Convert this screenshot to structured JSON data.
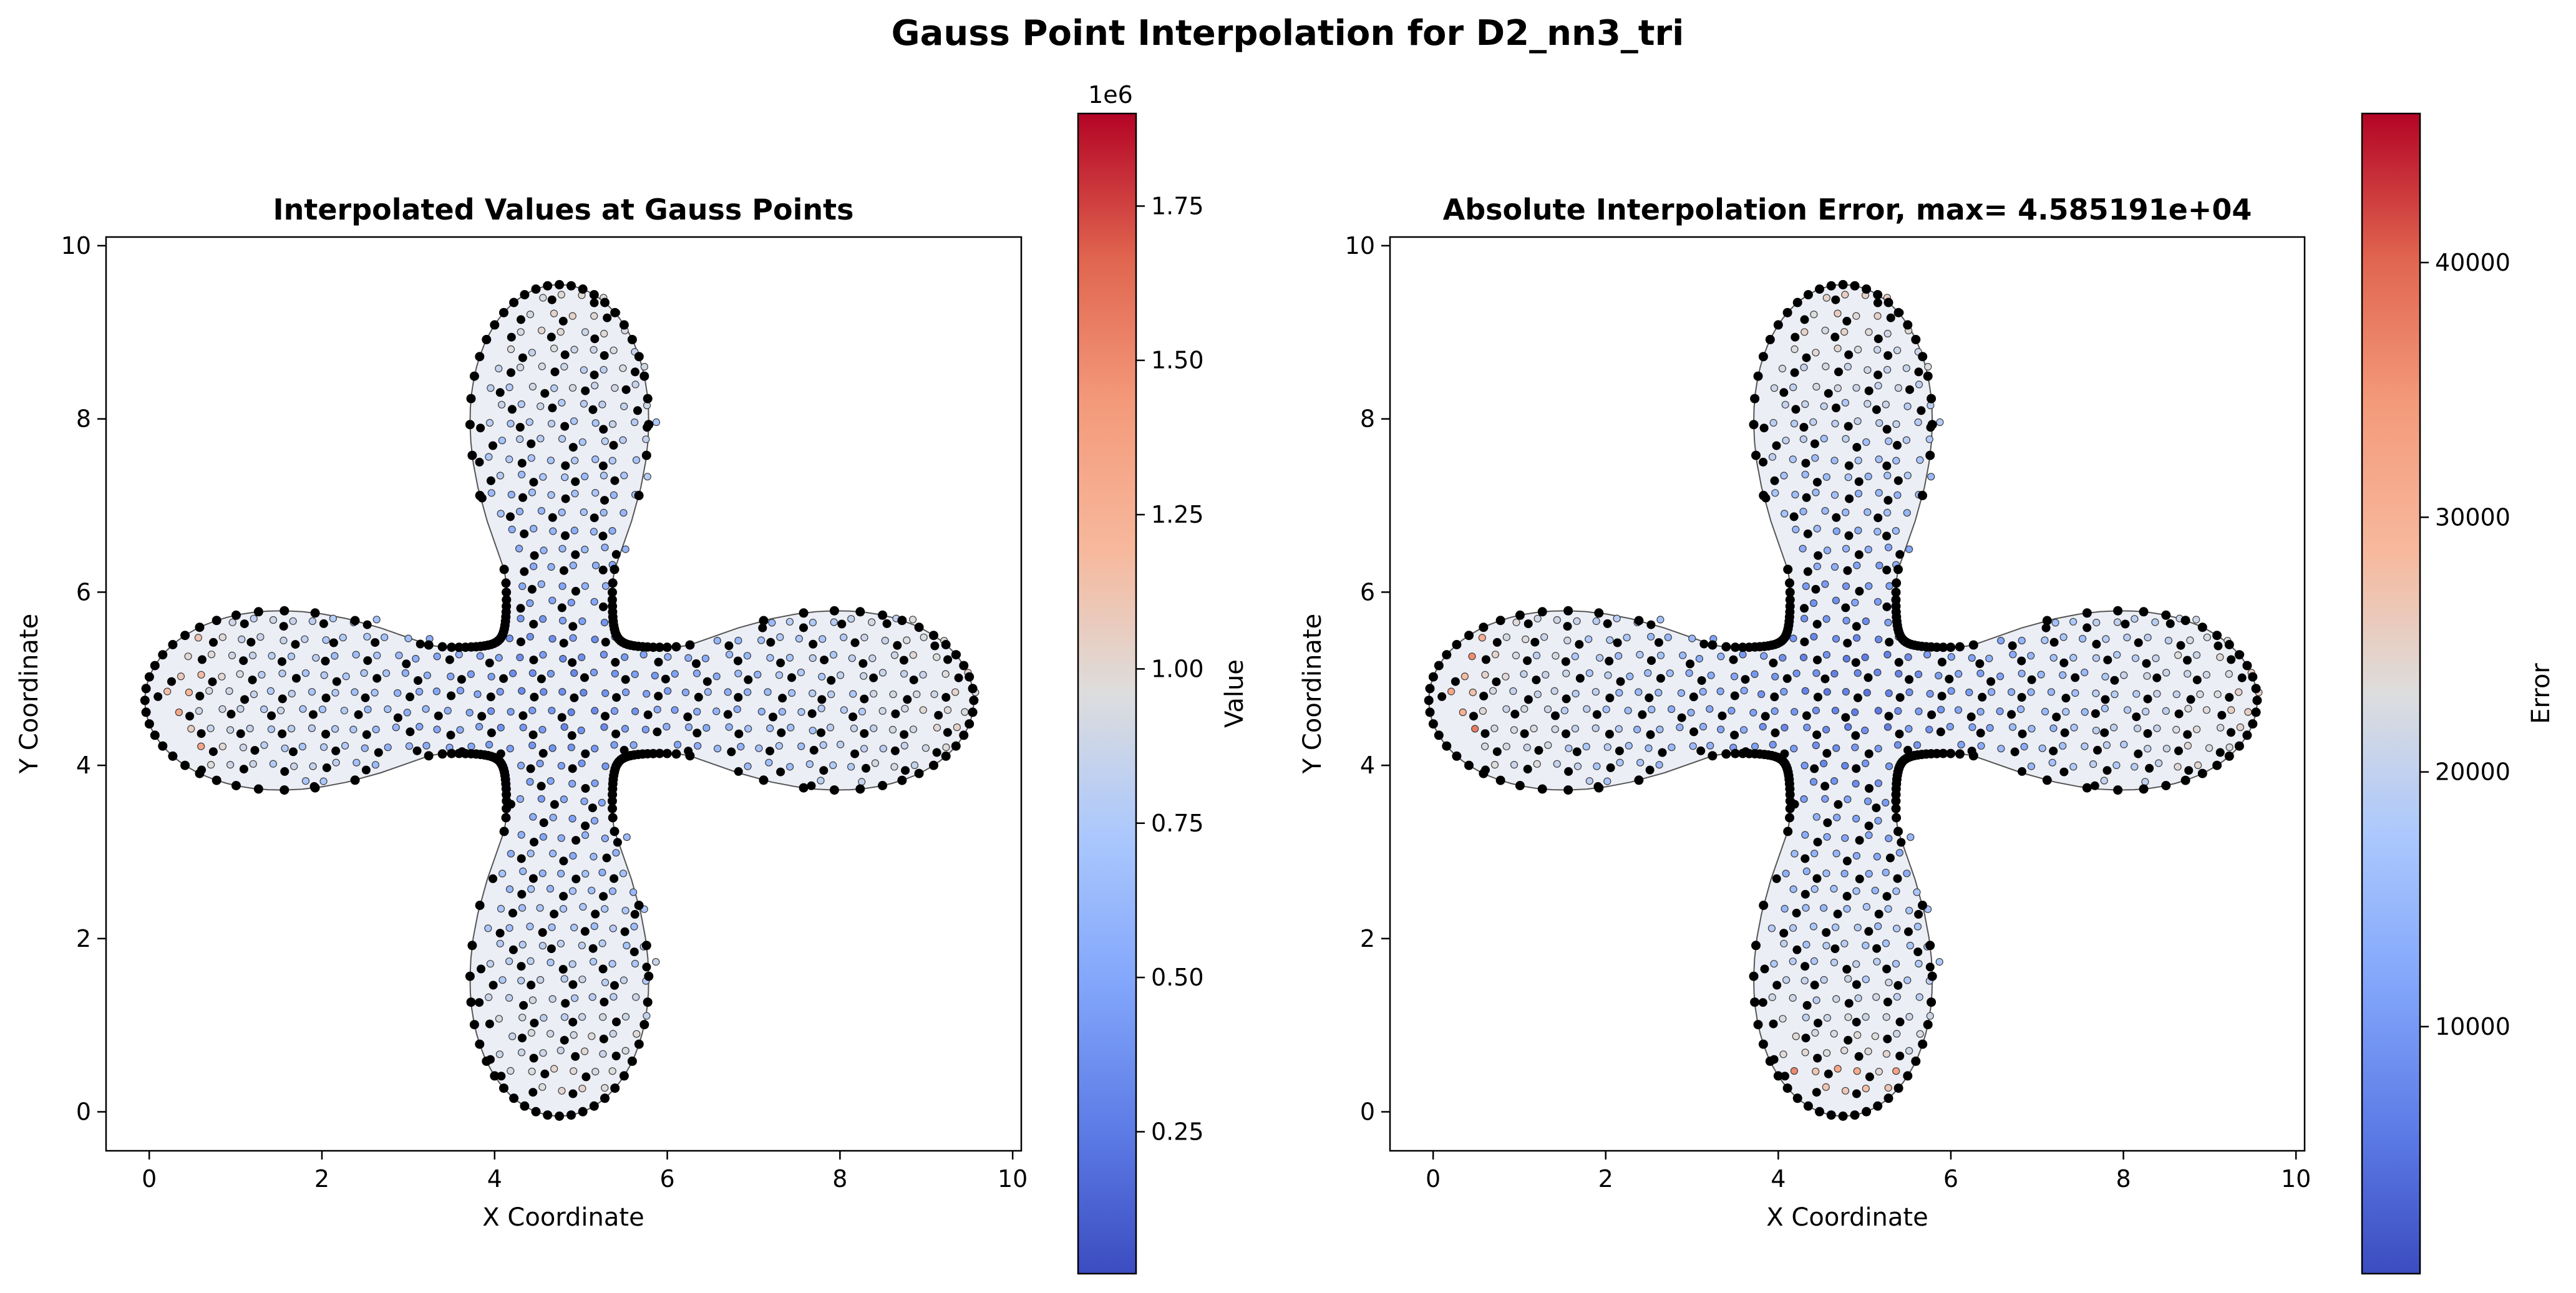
{
  "figure": {
    "title": "Gauss Point Interpolation for D2_nn3_tri"
  },
  "chart_data": [
    {
      "type": "scatter",
      "subtype": "triangular-mesh-gauss-points",
      "title": "Interpolated Values at Gauss Points",
      "xlabel": "X Coordinate",
      "ylabel": "Y Coordinate",
      "xlim": [
        -0.5,
        10.1
      ],
      "ylim": [
        -0.45,
        10.1
      ],
      "xticks": [
        0,
        2,
        4,
        6,
        8,
        10
      ],
      "yticks": [
        0,
        2,
        4,
        6,
        8,
        10
      ],
      "xtick_labels": [
        "0",
        "2",
        "4",
        "6",
        "8",
        "10"
      ],
      "ytick_labels": [
        "0",
        "2",
        "4",
        "6",
        "8",
        "10"
      ],
      "domain_shape": "8-petal flower, center (4.75, 4.75)",
      "colormap": "coolwarm",
      "colorbar": {
        "label": "Value",
        "multiplier": "1e6",
        "range": [
          0.02,
          1.9
        ],
        "ticks": [
          0.25,
          0.5,
          0.75,
          1.0,
          1.25,
          1.5,
          1.75
        ],
        "tick_labels": [
          "0.25",
          "0.50",
          "0.75",
          "1.00",
          "1.25",
          "1.50",
          "1.75"
        ]
      }
    },
    {
      "type": "scatter",
      "subtype": "triangular-mesh-gauss-points",
      "title": "Absolute Interpolation Error, max= 4.585191e+04",
      "xlabel": "X Coordinate",
      "ylabel": "Y Coordinate",
      "xlim": [
        -0.5,
        10.1
      ],
      "ylim": [
        -0.45,
        10.1
      ],
      "xticks": [
        0,
        2,
        4,
        6,
        8,
        10
      ],
      "yticks": [
        0,
        2,
        4,
        6,
        8,
        10
      ],
      "xtick_labels": [
        "0",
        "2",
        "4",
        "6",
        "8",
        "10"
      ],
      "ytick_labels": [
        "0",
        "2",
        "4",
        "6",
        "8",
        "10"
      ],
      "domain_shape": "8-petal flower, center (4.75, 4.75)",
      "colormap": "coolwarm",
      "colorbar": {
        "label": "Error",
        "multiplier": "",
        "range": [
          300,
          45852
        ],
        "ticks": [
          10000,
          20000,
          30000,
          40000
        ],
        "tick_labels": [
          "10000",
          "20000",
          "30000",
          "40000"
        ]
      }
    }
  ],
  "colors": {
    "node": "#000000",
    "mesh_edge": "#3c3c3c",
    "cmap_low": "#3b4cc0",
    "cmap_mid": "#dddddd",
    "cmap_high": "#b40426"
  }
}
